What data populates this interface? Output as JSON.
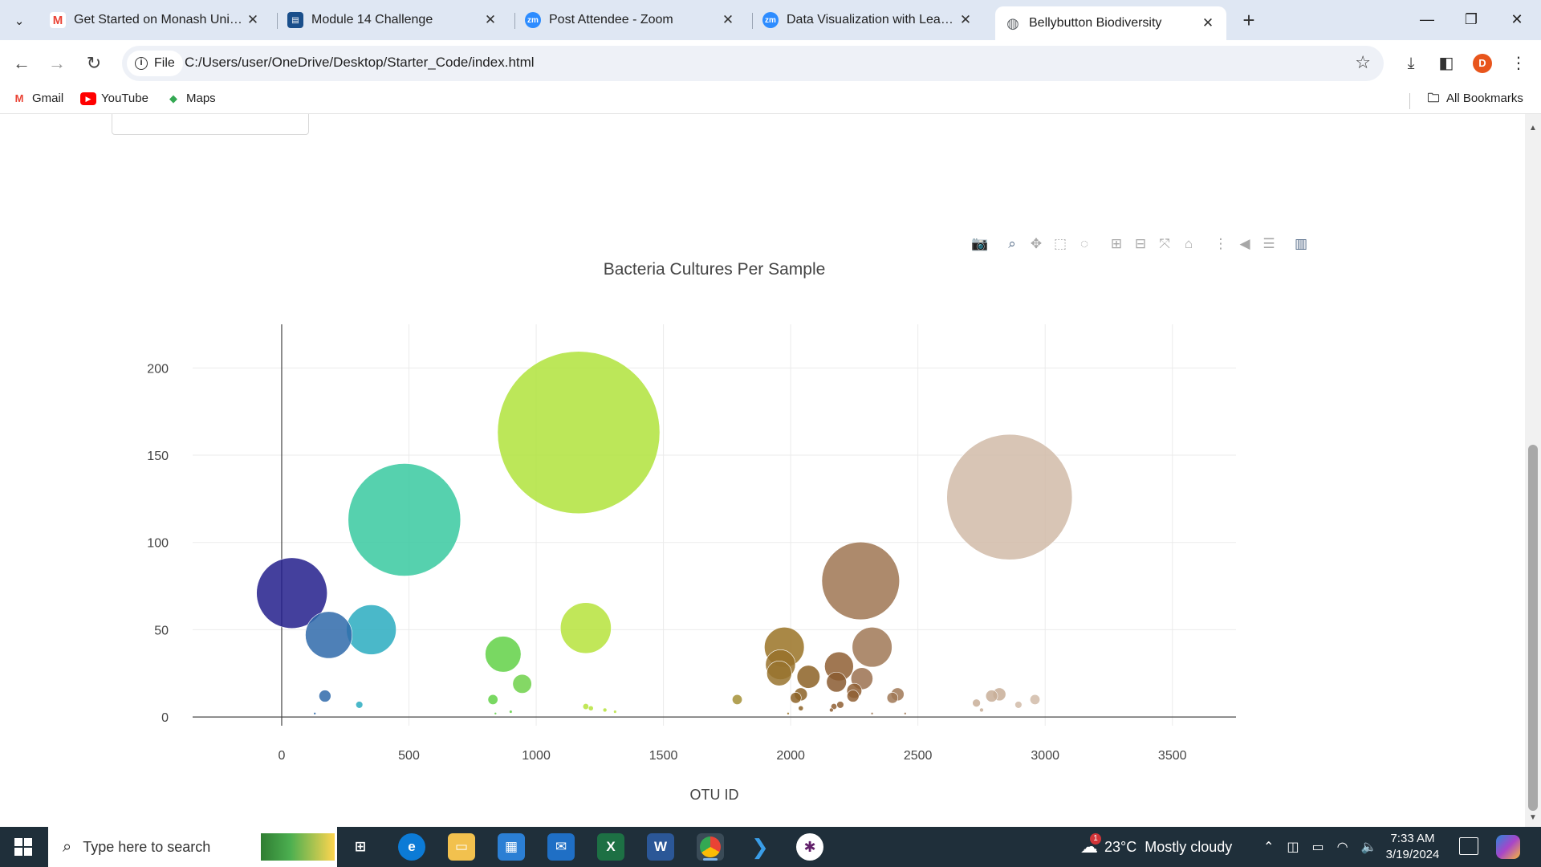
{
  "browser": {
    "tabs": [
      {
        "title": "Get Started on Monash Univers",
        "icon": "gmail-icon",
        "color": "#ea4335",
        "glyph": "M"
      },
      {
        "title": "Module 14 Challenge",
        "icon": "module-icon",
        "color": "#1a4f8b",
        "glyph": "▤"
      },
      {
        "title": "Post Attendee - Zoom",
        "icon": "zoom-icon",
        "color": "#2d8cff",
        "glyph": "zm"
      },
      {
        "title": "Data Visualization with Leaflet -",
        "icon": "zoom-icon",
        "color": "#2d8cff",
        "glyph": "zm"
      },
      {
        "title": "Bellybutton Biodiversity",
        "icon": "globe-icon",
        "color": "#5f6368",
        "glyph": "◍"
      }
    ],
    "omnibox": {
      "scheme_label": "File",
      "url": "C:/Users/user/OneDrive/Desktop/Starter_Code/index.html"
    },
    "profile_initial": "D",
    "bookmarks": [
      {
        "label": "Gmail",
        "icon": "gmail-icon",
        "color": "#ea4335",
        "glyph": "M"
      },
      {
        "label": "YouTube",
        "icon": "youtube-icon",
        "color": "#ff0000",
        "glyph": "▶"
      },
      {
        "label": "Maps",
        "icon": "maps-icon",
        "color": "#34a853",
        "glyph": "◆"
      }
    ],
    "all_bookmarks_label": "All Bookmarks"
  },
  "chart_data": {
    "type": "scatter",
    "title": "Bacteria Cultures Per Sample",
    "xlabel": "OTU ID",
    "ylabel": "",
    "xlim": [
      -350,
      3750
    ],
    "ylim": [
      -5,
      225
    ],
    "x_ticks": [
      0,
      500,
      1000,
      1500,
      2000,
      2500,
      3000,
      3500
    ],
    "y_ticks": [
      0,
      50,
      100,
      150,
      200
    ],
    "grid": true,
    "legend": "none",
    "marker_size_encodes": "y value",
    "color_encodes": "x value (Earth colorscale)",
    "points": [
      {
        "x": 40,
        "y": 71,
        "color": "#231e8c"
      },
      {
        "x": 185,
        "y": 47,
        "color": "#2f6aaa"
      },
      {
        "x": 352,
        "y": 50,
        "color": "#2aabc0"
      },
      {
        "x": 482,
        "y": 113,
        "color": "#38c9a0"
      },
      {
        "x": 870,
        "y": 36,
        "color": "#62d146"
      },
      {
        "x": 945,
        "y": 19,
        "color": "#6ed14a"
      },
      {
        "x": 1167,
        "y": 163,
        "color": "#b0e33c"
      },
      {
        "x": 1195,
        "y": 51,
        "color": "#b6e33c"
      },
      {
        "x": 1975,
        "y": 40,
        "color": "#9a7326"
      },
      {
        "x": 1960,
        "y": 30,
        "color": "#98712a"
      },
      {
        "x": 1955,
        "y": 25,
        "color": "#98732e"
      },
      {
        "x": 2070,
        "y": 23,
        "color": "#8c6126"
      },
      {
        "x": 2190,
        "y": 29,
        "color": "#8f5f34"
      },
      {
        "x": 2180,
        "y": 20,
        "color": "#8a5a30"
      },
      {
        "x": 2275,
        "y": 78,
        "color": "#9f7552"
      },
      {
        "x": 2320,
        "y": 40,
        "color": "#a07856"
      },
      {
        "x": 2280,
        "y": 22,
        "color": "#9b7150"
      },
      {
        "x": 2860,
        "y": 126,
        "color": "#d1bba8"
      },
      {
        "x": 170,
        "y": 12,
        "color": "#2f6aaa"
      },
      {
        "x": 305,
        "y": 7,
        "color": "#2aabc0"
      },
      {
        "x": 830,
        "y": 10,
        "color": "#62d146"
      },
      {
        "x": 1790,
        "y": 10,
        "color": "#a49036"
      },
      {
        "x": 2040,
        "y": 13,
        "color": "#8c6126"
      },
      {
        "x": 2020,
        "y": 11,
        "color": "#8c6126"
      },
      {
        "x": 2245,
        "y": 12,
        "color": "#8f5f34"
      },
      {
        "x": 2250,
        "y": 15,
        "color": "#8f5f34"
      },
      {
        "x": 2400,
        "y": 11,
        "color": "#a07856"
      },
      {
        "x": 2420,
        "y": 13,
        "color": "#a07856"
      },
      {
        "x": 2730,
        "y": 8,
        "color": "#c8ae98"
      },
      {
        "x": 2790,
        "y": 12,
        "color": "#c8ae98"
      },
      {
        "x": 2820,
        "y": 13,
        "color": "#c8ae98"
      },
      {
        "x": 2960,
        "y": 10,
        "color": "#d1bba8"
      },
      {
        "x": 2895,
        "y": 7,
        "color": "#d1bba8"
      },
      {
        "x": 1195,
        "y": 6,
        "color": "#b6e33c"
      },
      {
        "x": 1215,
        "y": 5,
        "color": "#b6e33c"
      },
      {
        "x": 1270,
        "y": 4,
        "color": "#b6e33c"
      },
      {
        "x": 1310,
        "y": 3,
        "color": "#b6e33c"
      },
      {
        "x": 2040,
        "y": 5,
        "color": "#8c6126"
      },
      {
        "x": 2170,
        "y": 6,
        "color": "#8f5f34"
      },
      {
        "x": 2195,
        "y": 7,
        "color": "#8f5f34"
      },
      {
        "x": 2160,
        "y": 4,
        "color": "#8f5f34"
      },
      {
        "x": 2750,
        "y": 4,
        "color": "#c8ae98"
      },
      {
        "x": 900,
        "y": 3,
        "color": "#62d146"
      },
      {
        "x": 840,
        "y": 2,
        "color": "#62d146"
      },
      {
        "x": 130,
        "y": 2,
        "color": "#2f6aaa"
      },
      {
        "x": 1990,
        "y": 2,
        "color": "#9a7326"
      },
      {
        "x": 2320,
        "y": 2,
        "color": "#a07856"
      },
      {
        "x": 2450,
        "y": 2,
        "color": "#a07856"
      }
    ]
  },
  "modebar": [
    {
      "name": "camera-icon",
      "glyph": "📷"
    },
    {
      "name": "zoom-icon",
      "glyph": "⌕"
    },
    {
      "name": "pan-icon",
      "glyph": "✥"
    },
    {
      "name": "box-select-icon",
      "glyph": "⬚"
    },
    {
      "name": "lasso-select-icon",
      "glyph": "◌"
    },
    {
      "name": "zoom-in-icon",
      "glyph": "⊞"
    },
    {
      "name": "zoom-out-icon",
      "glyph": "⊟"
    },
    {
      "name": "autoscale-icon",
      "glyph": "⤧"
    },
    {
      "name": "reset-axes-icon",
      "glyph": "⌂"
    },
    {
      "name": "spike-lines-icon",
      "glyph": "⋮"
    },
    {
      "name": "hover-closest-icon",
      "glyph": "◀"
    },
    {
      "name": "hover-compare-icon",
      "glyph": "☰"
    },
    {
      "name": "plotly-logo-icon",
      "glyph": "▥"
    }
  ],
  "taskbar": {
    "search_placeholder": "Type here to search",
    "weather": "23°C  Mostly cloudy",
    "weather_badge": "1",
    "time": "7:33 AM",
    "date": "3/19/2024"
  }
}
